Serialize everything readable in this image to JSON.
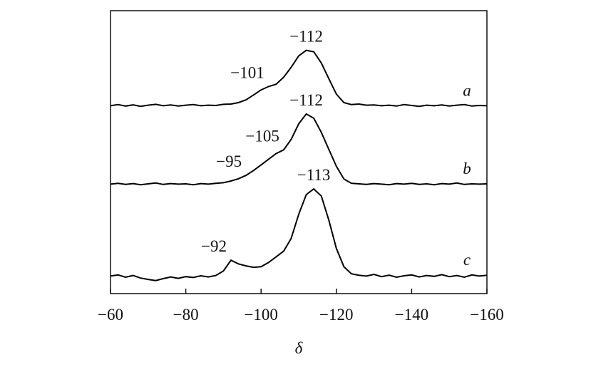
{
  "chart_data": {
    "type": "line",
    "xlabel": "δ",
    "x": [
      -60,
      -62,
      -64,
      -66,
      -68,
      -70,
      -72,
      -74,
      -76,
      -78,
      -80,
      -82,
      -84,
      -86,
      -88,
      -90,
      -92,
      -94,
      -96,
      -98,
      -100,
      -102,
      -104,
      -106,
      -108,
      -110,
      -112,
      -114,
      -116,
      -118,
      -120,
      -122,
      -124,
      -126,
      -128,
      -130,
      -132,
      -134,
      -136,
      -138,
      -140,
      -142,
      -144,
      -146,
      -148,
      -150,
      -152,
      -154,
      -156,
      -158,
      -160
    ],
    "series": [
      {
        "name": "a",
        "color": "#000000",
        "values": [
          66.4,
          66.8,
          66.3,
          66.7,
          66.2,
          66.6,
          66.9,
          66.4,
          66.7,
          66.3,
          66.6,
          66.8,
          66.4,
          66.6,
          66.5,
          66.9,
          67.0,
          67.5,
          68.5,
          70.2,
          72.0,
          73.2,
          74.0,
          76.5,
          80.0,
          84.0,
          86.0,
          85.5,
          81.5,
          76.0,
          70.5,
          67.5,
          66.8,
          67.0,
          66.6,
          66.7,
          66.4,
          66.6,
          66.3,
          66.8,
          66.5,
          66.2,
          66.6,
          66.4,
          66.7,
          66.3,
          66.6,
          66.8,
          66.3,
          66.5,
          66.4
        ]
      },
      {
        "name": "b",
        "color": "#000000",
        "values": [
          38.7,
          39.0,
          38.6,
          38.9,
          38.5,
          38.8,
          39.1,
          38.6,
          38.9,
          38.7,
          38.8,
          38.5,
          38.9,
          38.7,
          39.0,
          39.2,
          39.8,
          40.6,
          41.8,
          43.5,
          45.5,
          47.5,
          49.5,
          50.8,
          54.5,
          60.0,
          63.5,
          62.0,
          57.0,
          51.0,
          45.0,
          40.5,
          39.0,
          38.8,
          38.6,
          38.9,
          38.7,
          38.5,
          38.9,
          38.7,
          39.0,
          38.6,
          38.8,
          38.5,
          38.9,
          38.7,
          39.1,
          38.6,
          38.8,
          38.7,
          38.8
        ]
      },
      {
        "name": "c",
        "color": "#000000",
        "values": [
          6.2,
          6.6,
          5.8,
          6.4,
          5.5,
          5.0,
          4.6,
          5.3,
          5.9,
          5.4,
          6.0,
          5.7,
          6.3,
          5.9,
          6.4,
          8.0,
          11.8,
          10.5,
          9.8,
          9.3,
          9.5,
          11.0,
          13.0,
          15.0,
          19.5,
          28.0,
          35.0,
          37.0,
          34.5,
          26.0,
          16.0,
          9.5,
          7.0,
          6.5,
          6.2,
          6.8,
          6.0,
          6.5,
          5.8,
          6.3,
          6.6,
          5.9,
          6.4,
          6.1,
          6.7,
          6.0,
          6.4,
          5.8,
          6.6,
          6.2,
          6.5
        ]
      }
    ],
    "annotations": [
      {
        "text": "−112",
        "x": -112,
        "series": 0
      },
      {
        "text": "−101",
        "x": -102,
        "series": 0
      },
      {
        "text": "−112",
        "x": -112,
        "series": 1
      },
      {
        "text": "−105",
        "x": -106,
        "series": 1
      },
      {
        "text": "−95",
        "x": -96,
        "series": 1
      },
      {
        "text": "−113",
        "x": -114,
        "series": 2
      },
      {
        "text": "−92",
        "x": -92,
        "series": 2
      }
    ],
    "xlim": [
      -60,
      -160
    ],
    "xticks": [
      {
        "value": -60,
        "label": "−60"
      },
      {
        "value": -80,
        "label": "−80"
      },
      {
        "value": -100,
        "label": "−100"
      },
      {
        "value": -120,
        "label": "−120"
      },
      {
        "value": -140,
        "label": "−140"
      },
      {
        "value": -160,
        "label": "−160"
      }
    ],
    "ylim": [
      0,
      100
    ]
  }
}
